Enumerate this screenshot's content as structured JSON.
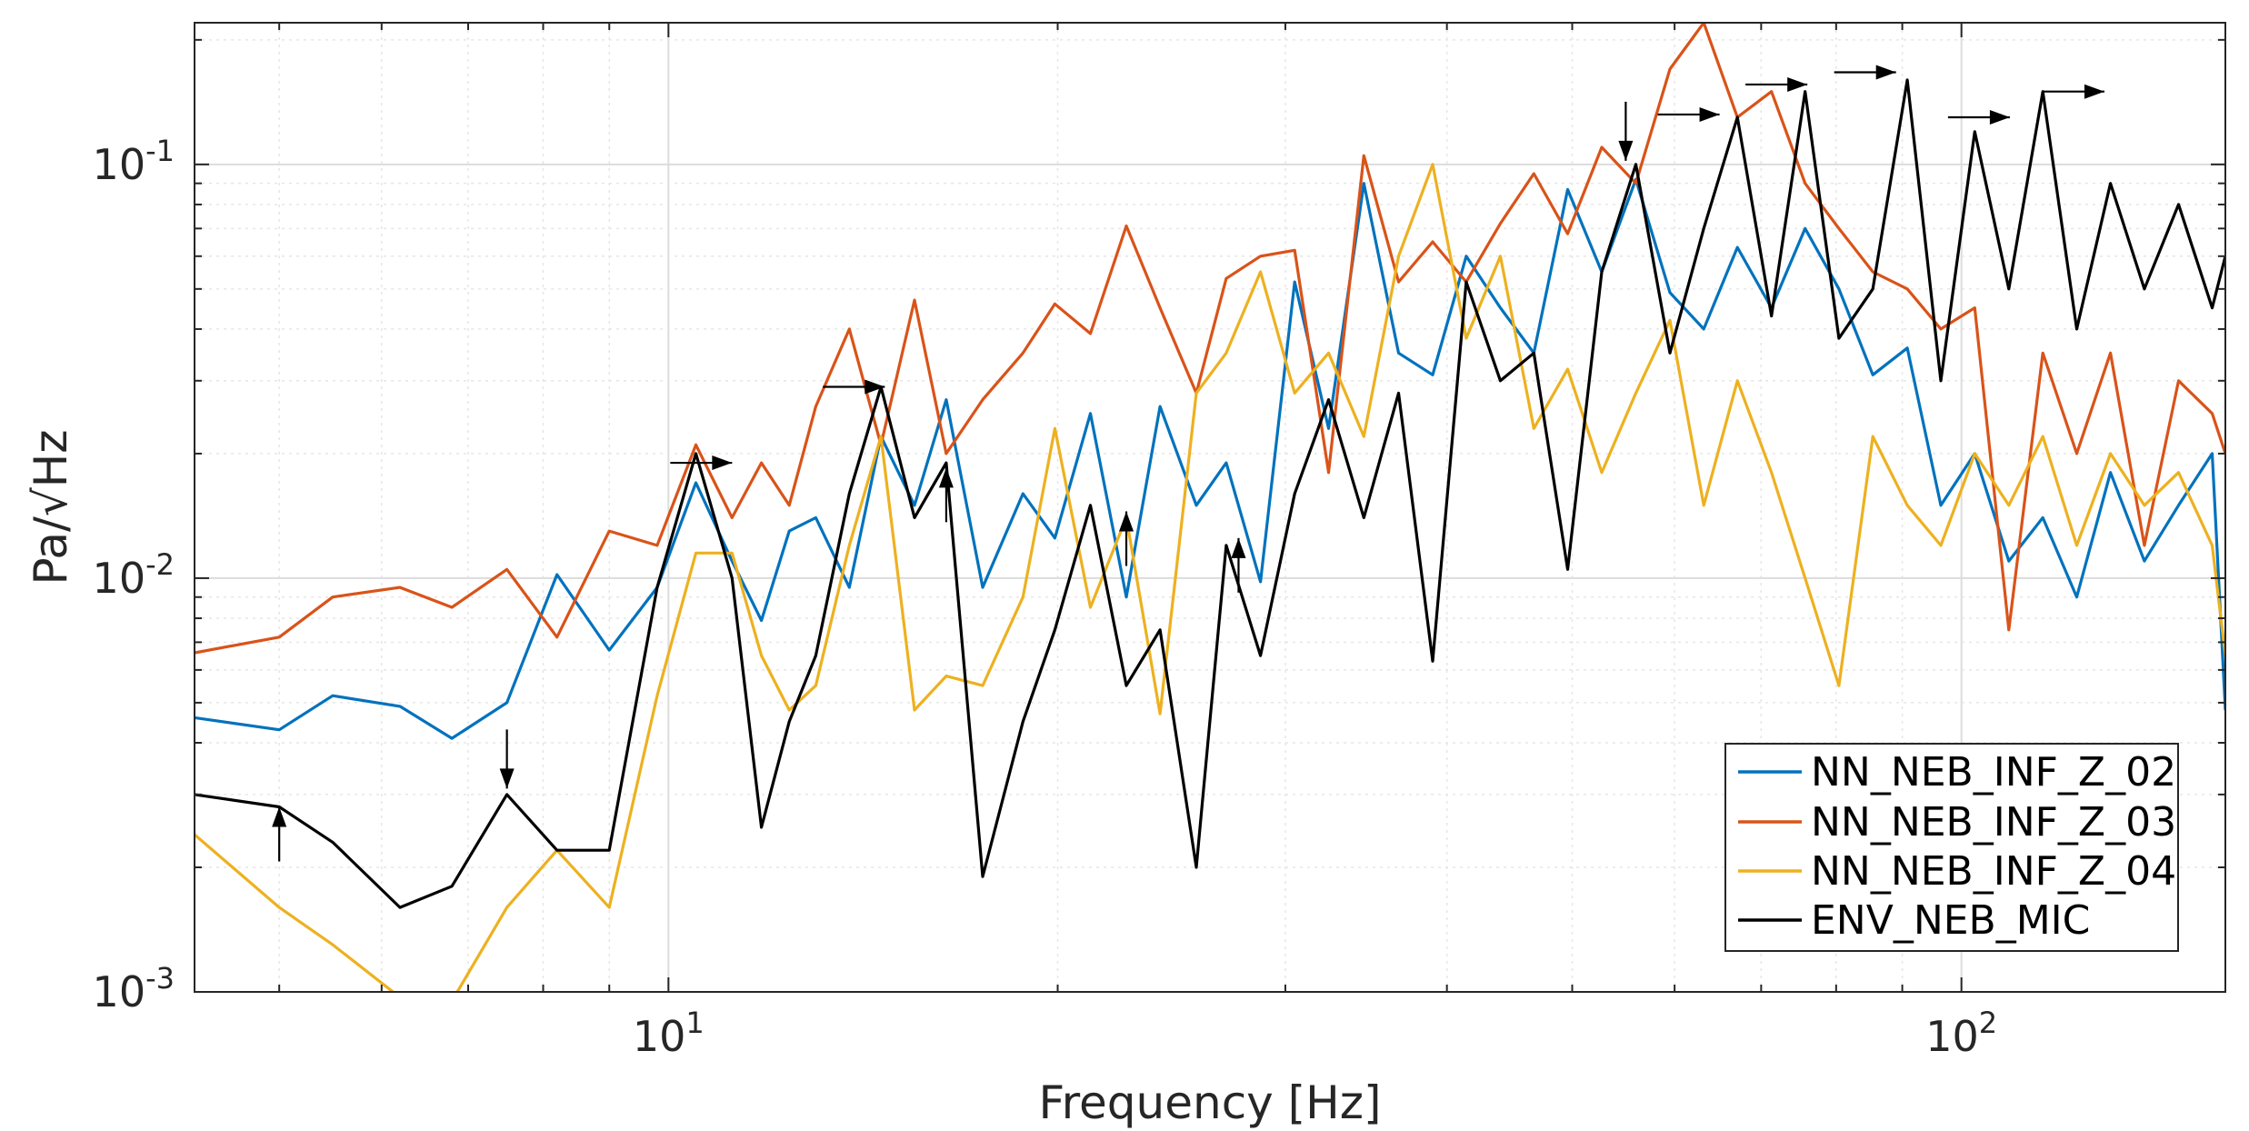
{
  "chart_data": {
    "type": "line",
    "title": "",
    "xlabel": "Frequency [Hz]",
    "ylabel": "Pa/√Hz",
    "xscale": "log",
    "yscale": "log",
    "xlim": [
      4.3,
      160
    ],
    "ylim": [
      0.001,
      0.22
    ],
    "grid": true,
    "minor_grid": true,
    "legend_position": "bottom-right",
    "x_ticks": [
      {
        "value": 10,
        "base": "10",
        "exp": "1"
      },
      {
        "value": 100,
        "base": "10",
        "exp": "2"
      }
    ],
    "y_ticks": [
      {
        "value": 0.001,
        "base": "10",
        "exp": "-3"
      },
      {
        "value": 0.01,
        "base": "10",
        "exp": "-2"
      },
      {
        "value": 0.1,
        "base": "10",
        "exp": "-1"
      }
    ],
    "series": [
      {
        "name": "NN_NEB_INF_Z_02",
        "color": "#0072BD",
        "x": [
          4.3,
          5.0,
          5.5,
          6.2,
          6.8,
          7.5,
          8.2,
          9.0,
          9.8,
          10.5,
          11.2,
          11.8,
          12.4,
          13.0,
          13.8,
          14.6,
          15.5,
          16.4,
          17.5,
          18.8,
          19.9,
          21.2,
          22.6,
          24.0,
          25.6,
          27.0,
          28.7,
          30.5,
          32.4,
          34.5,
          36.7,
          39.0,
          41.4,
          44.0,
          46.7,
          49.6,
          52.7,
          56.0,
          59.5,
          63.2,
          67.1,
          71.3,
          75.7,
          80.4,
          85.4,
          90.8,
          96.4,
          102.4,
          108.8,
          115.6,
          122.8,
          130.4,
          138.5,
          147.2,
          156.3,
          160.0
        ],
        "y": [
          0.0046,
          0.0043,
          0.0052,
          0.0049,
          0.0041,
          0.005,
          0.0102,
          0.0067,
          0.0095,
          0.017,
          0.011,
          0.0079,
          0.013,
          0.014,
          0.0095,
          0.022,
          0.015,
          0.027,
          0.0095,
          0.016,
          0.0125,
          0.025,
          0.009,
          0.026,
          0.015,
          0.019,
          0.0098,
          0.052,
          0.023,
          0.09,
          0.035,
          0.031,
          0.06,
          0.045,
          0.035,
          0.087,
          0.055,
          0.092,
          0.049,
          0.04,
          0.063,
          0.045,
          0.07,
          0.05,
          0.031,
          0.036,
          0.015,
          0.02,
          0.011,
          0.014,
          0.009,
          0.018,
          0.011,
          0.015,
          0.02,
          0.0048
        ]
      },
      {
        "name": "NN_NEB_INF_Z_03",
        "color": "#D95319",
        "x": [
          4.3,
          5.0,
          5.5,
          6.2,
          6.8,
          7.5,
          8.2,
          9.0,
          9.8,
          10.5,
          11.2,
          11.8,
          12.4,
          13.0,
          13.8,
          14.6,
          15.5,
          16.4,
          17.5,
          18.8,
          19.9,
          21.2,
          22.6,
          24.0,
          25.6,
          27.0,
          28.7,
          30.5,
          32.4,
          34.5,
          36.7,
          39.0,
          41.4,
          44.0,
          46.7,
          49.6,
          52.7,
          56.0,
          59.5,
          63.2,
          67.1,
          71.3,
          75.7,
          80.4,
          85.4,
          90.8,
          96.4,
          102.4,
          108.8,
          115.6,
          122.8,
          130.4,
          138.5,
          147.2,
          156.3,
          160.0
        ],
        "y": [
          0.0066,
          0.0072,
          0.009,
          0.0095,
          0.0085,
          0.0105,
          0.0072,
          0.013,
          0.012,
          0.021,
          0.014,
          0.019,
          0.015,
          0.026,
          0.04,
          0.021,
          0.047,
          0.02,
          0.027,
          0.035,
          0.046,
          0.039,
          0.071,
          0.045,
          0.028,
          0.053,
          0.06,
          0.062,
          0.018,
          0.105,
          0.052,
          0.065,
          0.052,
          0.072,
          0.095,
          0.068,
          0.11,
          0.09,
          0.17,
          0.22,
          0.13,
          0.15,
          0.09,
          0.07,
          0.055,
          0.05,
          0.04,
          0.045,
          0.0075,
          0.035,
          0.02,
          0.035,
          0.012,
          0.03,
          0.025,
          0.02
        ]
      },
      {
        "name": "NN_NEB_INF_Z_04",
        "color": "#EDB120",
        "x": [
          4.3,
          5.0,
          5.5,
          6.2,
          6.8,
          7.5,
          8.2,
          9.0,
          9.8,
          10.5,
          11.2,
          11.8,
          12.4,
          13.0,
          13.8,
          14.6,
          15.5,
          16.4,
          17.5,
          18.8,
          19.9,
          21.2,
          22.6,
          24.0,
          25.6,
          27.0,
          28.7,
          30.5,
          32.4,
          34.5,
          36.7,
          39.0,
          41.4,
          44.0,
          46.7,
          49.6,
          52.7,
          56.0,
          59.5,
          63.2,
          67.1,
          71.3,
          75.7,
          80.4,
          85.4,
          90.8,
          96.4,
          102.4,
          108.8,
          115.6,
          122.8,
          130.4,
          138.5,
          147.2,
          156.3,
          160.0
        ],
        "y": [
          0.0024,
          0.0016,
          0.0013,
          0.00097,
          0.00095,
          0.0016,
          0.0022,
          0.0016,
          0.0052,
          0.0115,
          0.0115,
          0.0065,
          0.0048,
          0.0055,
          0.012,
          0.022,
          0.0048,
          0.0058,
          0.0055,
          0.009,
          0.023,
          0.0085,
          0.014,
          0.0047,
          0.028,
          0.035,
          0.055,
          0.028,
          0.035,
          0.022,
          0.06,
          0.1,
          0.038,
          0.06,
          0.023,
          0.032,
          0.018,
          0.028,
          0.042,
          0.015,
          0.03,
          0.018,
          0.01,
          0.0055,
          0.022,
          0.015,
          0.012,
          0.02,
          0.015,
          0.022,
          0.012,
          0.02,
          0.015,
          0.018,
          0.012,
          0.0065
        ]
      },
      {
        "name": "ENV_NEB_MIC",
        "color": "#000000",
        "x": [
          4.3,
          5.0,
          5.5,
          6.2,
          6.8,
          7.5,
          8.2,
          9.0,
          9.8,
          10.5,
          11.2,
          11.8,
          12.4,
          13.0,
          13.8,
          14.6,
          15.5,
          16.4,
          17.5,
          18.8,
          19.9,
          21.2,
          22.6,
          24.0,
          25.6,
          27.0,
          28.7,
          30.5,
          32.4,
          34.5,
          36.7,
          39.0,
          41.4,
          44.0,
          46.7,
          49.6,
          52.7,
          56.0,
          59.5,
          63.2,
          67.1,
          71.3,
          75.7,
          80.4,
          85.4,
          90.8,
          96.4,
          102.4,
          108.8,
          115.6,
          122.8,
          130.4,
          138.5,
          147.2,
          156.3,
          160.0
        ],
        "y": [
          0.003,
          0.0028,
          0.0023,
          0.0016,
          0.0018,
          0.003,
          0.0022,
          0.0022,
          0.0095,
          0.02,
          0.01,
          0.0025,
          0.0045,
          0.0065,
          0.016,
          0.029,
          0.014,
          0.019,
          0.0019,
          0.0045,
          0.0075,
          0.015,
          0.0055,
          0.0075,
          0.002,
          0.012,
          0.0065,
          0.016,
          0.027,
          0.014,
          0.028,
          0.0063,
          0.052,
          0.03,
          0.035,
          0.0105,
          0.055,
          0.1,
          0.035,
          0.07,
          0.13,
          0.043,
          0.15,
          0.038,
          0.05,
          0.16,
          0.03,
          0.12,
          0.05,
          0.15,
          0.04,
          0.09,
          0.05,
          0.08,
          0.045,
          0.06
        ]
      }
    ],
    "annotations": [
      {
        "type": "arrow",
        "direction": "up",
        "x": 5.0,
        "y": 0.0028
      },
      {
        "type": "arrow",
        "direction": "down",
        "x": 7.5,
        "y": 0.0031
      },
      {
        "type": "arrow",
        "direction": "right",
        "x": 11.2,
        "y": 0.019
      },
      {
        "type": "arrow",
        "direction": "right",
        "x": 14.7,
        "y": 0.029
      },
      {
        "type": "arrow",
        "direction": "up",
        "x": 16.4,
        "y": 0.0185
      },
      {
        "type": "arrow",
        "direction": "up",
        "x": 22.6,
        "y": 0.0145
      },
      {
        "type": "arrow",
        "direction": "up",
        "x": 27.6,
        "y": 0.0125
      },
      {
        "type": "arrow",
        "direction": "down",
        "x": 55.0,
        "y": 0.102
      },
      {
        "type": "arrow",
        "direction": "right",
        "x": 65.0,
        "y": 0.132
      },
      {
        "type": "arrow",
        "direction": "right",
        "x": 76.0,
        "y": 0.156
      },
      {
        "type": "arrow",
        "direction": "right",
        "x": 89.0,
        "y": 0.167
      },
      {
        "type": "arrow",
        "direction": "right",
        "x": 109.0,
        "y": 0.13
      },
      {
        "type": "arrow",
        "direction": "right",
        "x": 129.0,
        "y": 0.15
      }
    ]
  }
}
